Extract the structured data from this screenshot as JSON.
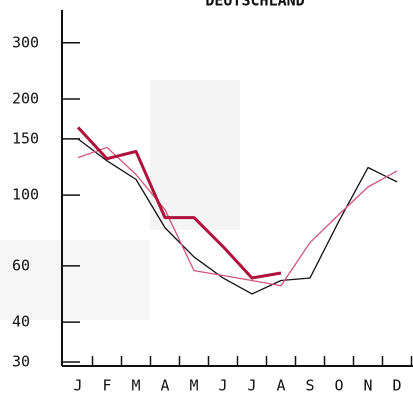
{
  "chart_data": {
    "type": "line",
    "title": "DEUTSCHLAND",
    "categories": [
      "J",
      "F",
      "M",
      "A",
      "M",
      "J",
      "J",
      "A",
      "S",
      "O",
      "N",
      "D"
    ],
    "series": [
      {
        "color": "#111111",
        "width": 1.3,
        "values": [
          150,
          128,
          112,
          79,
          64,
          55,
          49,
          54,
          55,
          83,
          122,
          110
        ]
      },
      {
        "color": "#d2557a",
        "width": 1.3,
        "values": [
          131,
          141,
          116,
          90,
          58,
          56,
          54,
          52,
          71,
          87,
          106,
          119
        ]
      },
      {
        "color": "#b0103c",
        "width": 3,
        "values": [
          163,
          130,
          137,
          85,
          85,
          69,
          55,
          57,
          null,
          null,
          null,
          null
        ]
      }
    ],
    "ylim": [
      30,
      380
    ],
    "yticks": [
      30,
      40,
      60,
      100,
      150,
      200,
      300
    ],
    "log_scale": true
  }
}
